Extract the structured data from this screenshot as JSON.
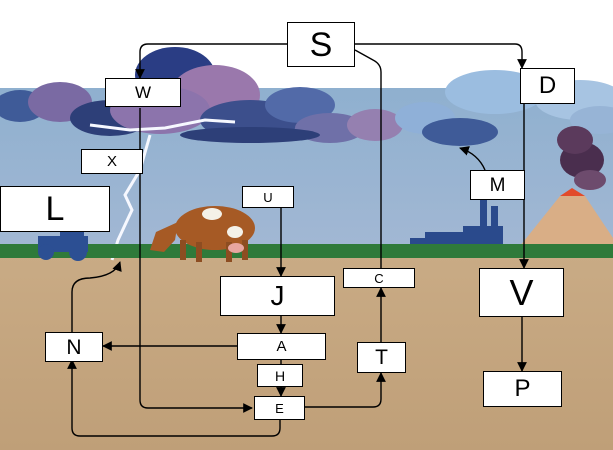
{
  "labels": {
    "S": "S",
    "W": "W",
    "D": "D",
    "X": "X",
    "M": "M",
    "L": "L",
    "U": "U",
    "C": "C",
    "J": "J",
    "V": "V",
    "N": "N",
    "A": "A",
    "T": "T",
    "H": "H",
    "E": "E",
    "P": "P"
  }
}
